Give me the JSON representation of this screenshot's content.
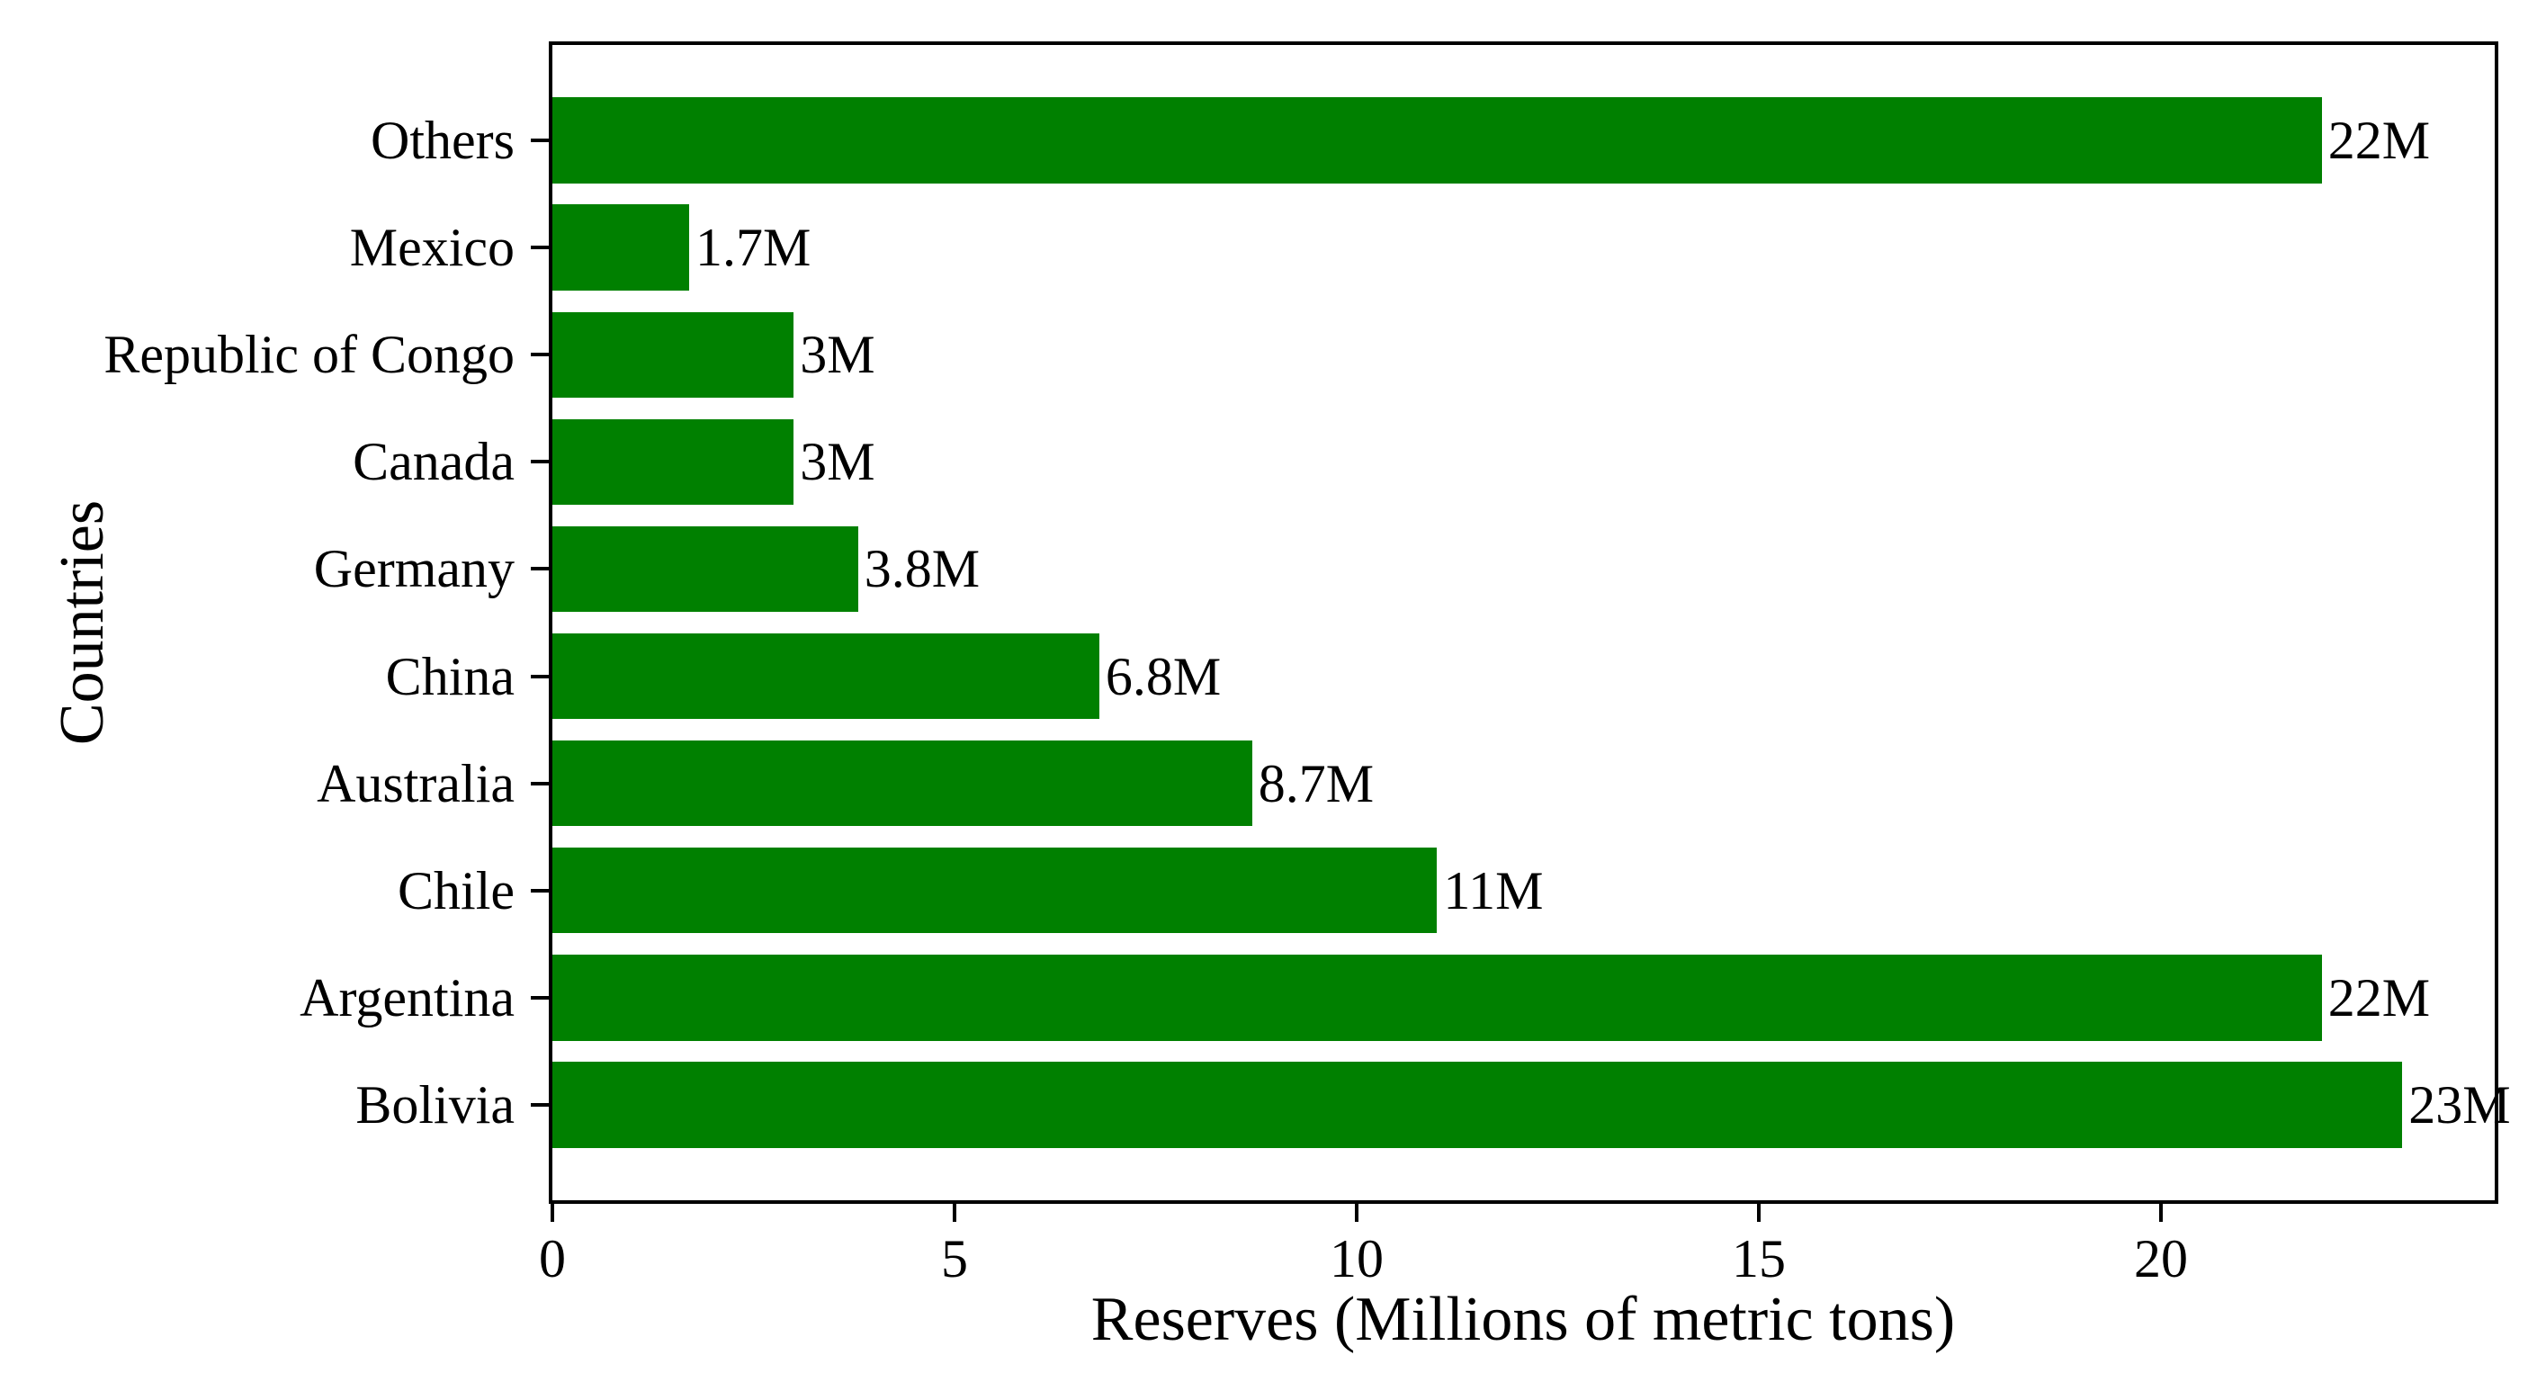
{
  "chart_data": {
    "type": "bar",
    "orientation": "horizontal",
    "xlabel": "Reserves (Millions of metric tons)",
    "ylabel": "Countries",
    "categories": [
      "Others",
      "Mexico",
      "Republic of Congo",
      "Canada",
      "Germany",
      "China",
      "Australia",
      "Chile",
      "Argentina",
      "Bolivia"
    ],
    "values": [
      22,
      1.7,
      3,
      3,
      3.8,
      6.8,
      8.7,
      11,
      22,
      23
    ],
    "value_labels": [
      "22M",
      "1.7M",
      "3M",
      "3M",
      "3.8M",
      "6.8M",
      "8.7M",
      "11M",
      "22M",
      "23M"
    ],
    "x_ticks": [
      0,
      5,
      10,
      15,
      20
    ],
    "x_tick_labels": [
      "0",
      "5",
      "10",
      "15",
      "20"
    ],
    "xlim": [
      0,
      24.15
    ],
    "ylim": [
      -0.89,
      9.89
    ],
    "bar_color": "#008000",
    "axis_color": "#000000",
    "background_color": "#ffffff",
    "grid": false,
    "legend": null,
    "title": ""
  }
}
